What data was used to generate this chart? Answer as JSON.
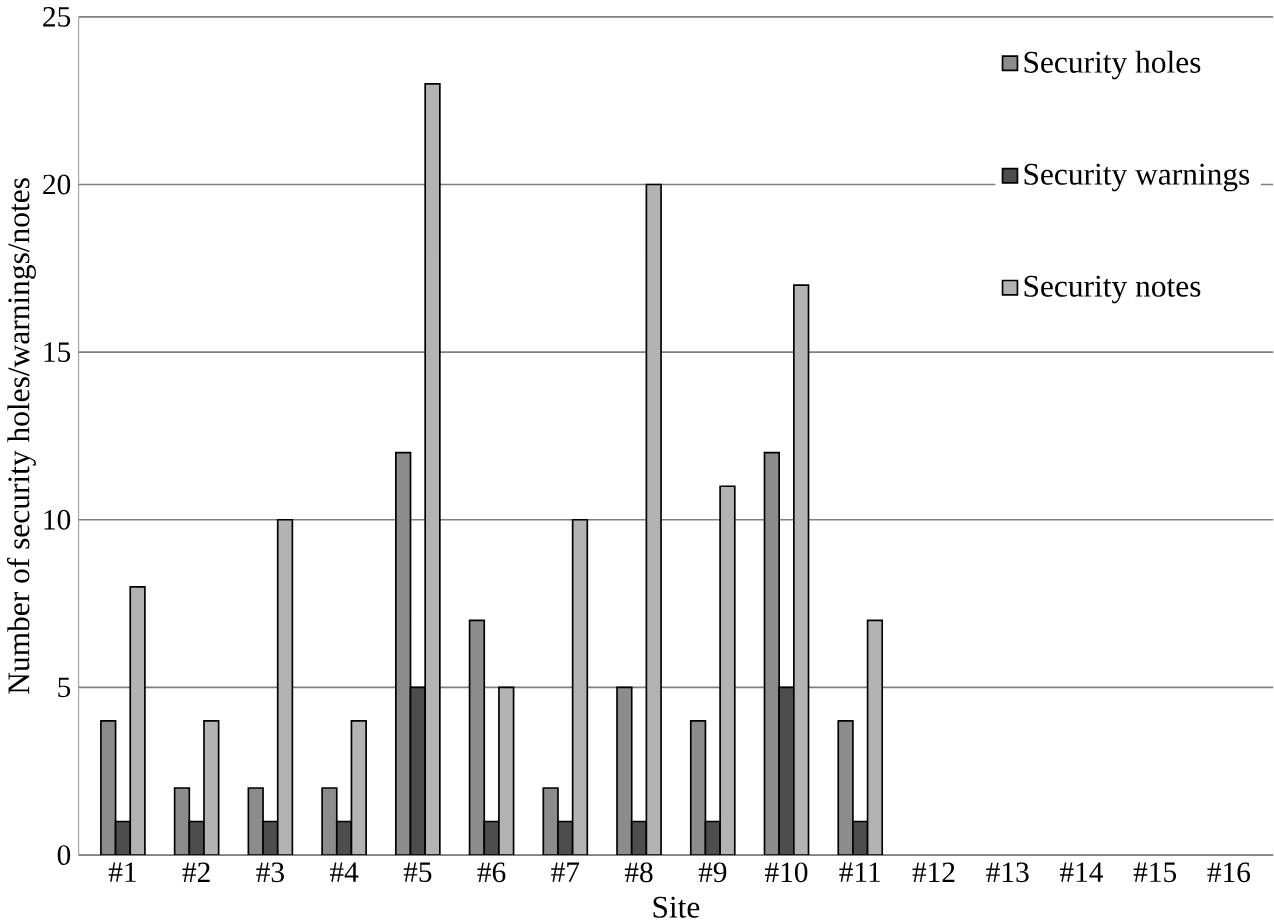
{
  "chart_data": {
    "type": "bar",
    "xlabel": "Site",
    "ylabel": "Number of security holes/warnings/notes",
    "categories": [
      "#1",
      "#2",
      "#3",
      "#4",
      "#5",
      "#6",
      "#7",
      "#8",
      "#9",
      "#10",
      "#11",
      "#12",
      "#13",
      "#14",
      "#15",
      "#16"
    ],
    "series": [
      {
        "name": "Security holes",
        "color": "#8c8c8c",
        "values": [
          4,
          2,
          2,
          2,
          12,
          7,
          2,
          5,
          4,
          12,
          4,
          null,
          null,
          null,
          null,
          null
        ]
      },
      {
        "name": "Security warnings",
        "color": "#4d4d4d",
        "values": [
          1,
          1,
          1,
          1,
          5,
          1,
          1,
          1,
          1,
          5,
          1,
          null,
          null,
          null,
          null,
          null
        ]
      },
      {
        "name": "Security notes",
        "color": "#b3b3b3",
        "values": [
          8,
          4,
          10,
          4,
          23,
          5,
          10,
          20,
          11,
          17,
          7,
          null,
          null,
          null,
          null,
          null
        ]
      }
    ],
    "ylim": [
      0,
      25
    ],
    "yticks": [
      0,
      5,
      10,
      15,
      20,
      25
    ],
    "grid": "y",
    "legend": "top right"
  }
}
